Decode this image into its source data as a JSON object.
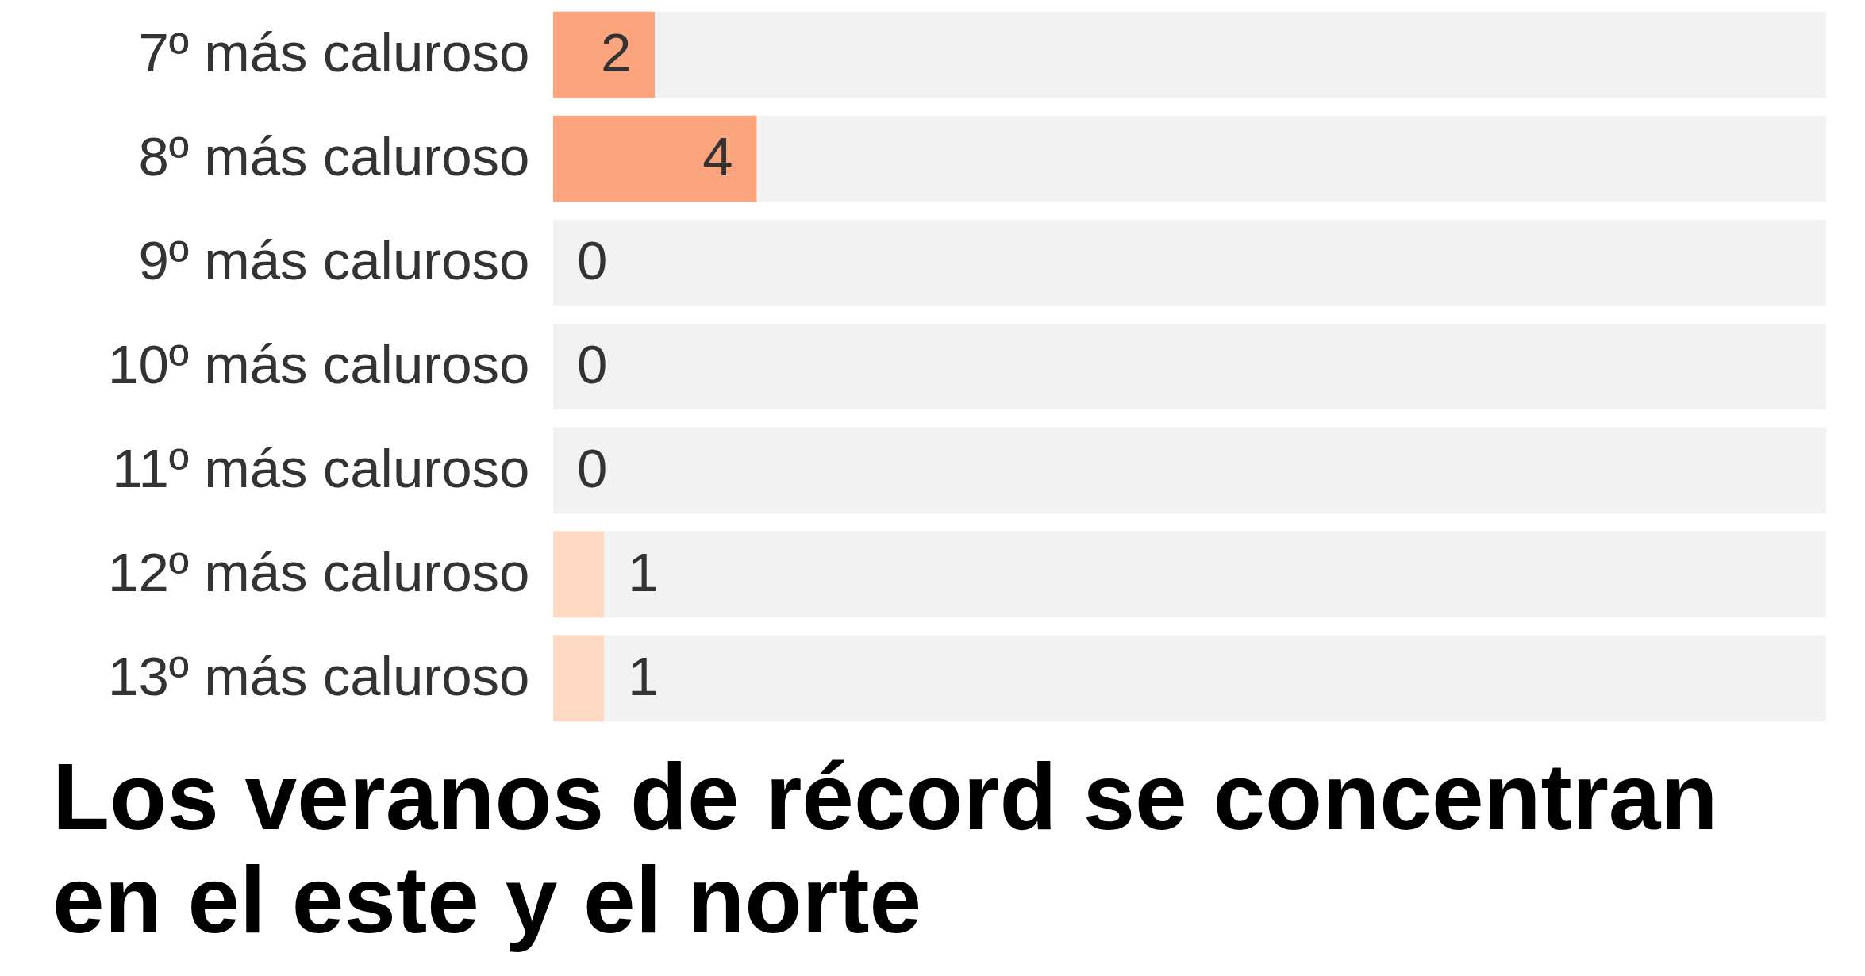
{
  "chart_data": {
    "type": "bar",
    "orientation": "horizontal",
    "stacked": true,
    "categories": [
      "7º más caluroso",
      "8º más caluroso",
      "9º más caluroso",
      "10º más caluroso",
      "11º más caluroso",
      "12º más caluroso",
      "13º más caluroso"
    ],
    "series": [
      {
        "colors": [
          "#fca47e",
          "#fca47e",
          "#fdd8c3",
          "#fdd8c3",
          "#fdd8c3",
          "#fdd8c3",
          "#fdd8c3"
        ],
        "values": [
          2,
          4,
          0,
          0,
          0,
          1,
          1
        ],
        "value_labels": [
          "2",
          "4",
          null,
          null,
          null,
          "1",
          "1"
        ]
      },
      {
        "color": "#f2f2f2",
        "values": [
          23,
          21,
          25,
          25,
          25,
          24,
          24
        ]
      }
    ],
    "xlim": [
      0,
      25
    ],
    "tick_labels": "y",
    "annotations": [
      {
        "text": "0",
        "y": "9º más caluroso"
      },
      {
        "text": "0",
        "y": "10º más caluroso"
      },
      {
        "text": "0",
        "y": "11º más caluroso"
      },
      "Los veranos de récord se concentran en el este y el norte"
    ]
  }
}
